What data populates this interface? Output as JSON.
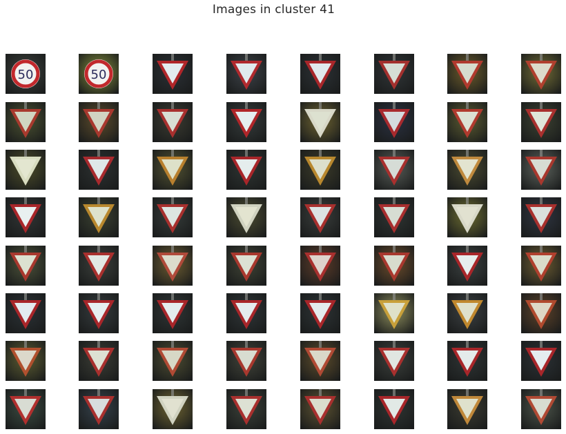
{
  "figure": {
    "title": "Images in cluster 41"
  },
  "grid": {
    "rows": 8,
    "cols": 8,
    "tiles": [
      {
        "sign": "speed-limit-50",
        "bg": "#3a3f3a",
        "accent": "#ffffff",
        "tint": "#e8ecec"
      },
      {
        "sign": "speed-limit-50",
        "bg": "#7f8a3a",
        "accent": "#cc2a2a",
        "tint": "#d9d3c0"
      },
      {
        "sign": "yield",
        "bg": "#2a2f34",
        "accent": "#b0262a",
        "tint": "#dfe9ee"
      },
      {
        "sign": "yield",
        "bg": "#3b4046",
        "accent": "#b02a2e",
        "tint": "#dbe8ec"
      },
      {
        "sign": "yield",
        "bg": "#2b3034",
        "accent": "#a8262a",
        "tint": "#dbe6ea"
      },
      {
        "sign": "yield",
        "bg": "#2f3436",
        "accent": "#a3302e",
        "tint": "#cfd9cf"
      },
      {
        "sign": "yield",
        "bg": "#6a5a2a",
        "accent": "#b03a2e",
        "tint": "#cfd6c6"
      },
      {
        "sign": "yield",
        "bg": "#6f6a34",
        "accent": "#b0402e",
        "tint": "#d6d6c2"
      },
      {
        "sign": "yield",
        "bg": "#4a5030",
        "accent": "#a83a2e",
        "tint": "#c8cfb8"
      },
      {
        "sign": "yield",
        "bg": "#5a4a2a",
        "accent": "#a8382e",
        "tint": "#c9cdb8"
      },
      {
        "sign": "yield",
        "bg": "#3a3a30",
        "accent": "#a8302e",
        "tint": "#d3d9cc"
      },
      {
        "sign": "yield",
        "bg": "#343a3a",
        "accent": "#b0262a",
        "tint": "#e1ebee"
      },
      {
        "sign": "yield",
        "bg": "#6a6030",
        "accent": "#d8d8c8",
        "tint": "#d8dcc8"
      },
      {
        "sign": "yield",
        "bg": "#2a3040",
        "accent": "#a82a2e",
        "tint": "#cdd5d8"
      },
      {
        "sign": "yield",
        "bg": "#5a5a30",
        "accent": "#b03a2e",
        "tint": "#d6dccc"
      },
      {
        "sign": "yield",
        "bg": "#3a4030",
        "accent": "#a8302e",
        "tint": "#dae2d4"
      },
      {
        "sign": "yield",
        "bg": "#4a4a28",
        "accent": "#d8dcc0",
        "tint": "#dfe2c8"
      },
      {
        "sign": "yield",
        "bg": "#2c3030",
        "accent": "#a82a2e",
        "tint": "#dae3e4"
      },
      {
        "sign": "yield",
        "bg": "#505030",
        "accent": "#b8802e",
        "tint": "#d8dcc0"
      },
      {
        "sign": "yield",
        "bg": "#2e3432",
        "accent": "#a8262a",
        "tint": "#e1eaea"
      },
      {
        "sign": "yield",
        "bg": "#3a3a28",
        "accent": "#b8882e",
        "tint": "#d6dac4"
      },
      {
        "sign": "yield",
        "bg": "#555a55",
        "accent": "#a8302e",
        "tint": "#cfd6cf"
      },
      {
        "sign": "yield",
        "bg": "#4a4a30",
        "accent": "#c08a3e",
        "tint": "#dfe0c8"
      },
      {
        "sign": "yield",
        "bg": "#5a605a",
        "accent": "#a8382e",
        "tint": "#d0d6cc"
      },
      {
        "sign": "yield",
        "bg": "#303434",
        "accent": "#a8262a",
        "tint": "#e6eeee"
      },
      {
        "sign": "yield",
        "bg": "#3a4030",
        "accent": "#b8882e",
        "tint": "#d8ddc4"
      },
      {
        "sign": "yield",
        "bg": "#343a38",
        "accent": "#a8302e",
        "tint": "#d8e1dc"
      },
      {
        "sign": "yield",
        "bg": "#4a4a30",
        "accent": "#d0d2c0",
        "tint": "#dee0c8"
      },
      {
        "sign": "yield",
        "bg": "#383c3a",
        "accent": "#a8302e",
        "tint": "#d6dede"
      },
      {
        "sign": "yield",
        "bg": "#2e3432",
        "accent": "#a82e2e",
        "tint": "#d0d8cc"
      },
      {
        "sign": "yield",
        "bg": "#6a6a30",
        "accent": "#d8d8c8",
        "tint": "#dcdcc8"
      },
      {
        "sign": "yield",
        "bg": "#2e3440",
        "accent": "#a8302e",
        "tint": "#d4dad8"
      },
      {
        "sign": "yield",
        "bg": "#4a5038",
        "accent": "#a8382e",
        "tint": "#d6dcc8"
      },
      {
        "sign": "yield",
        "bg": "#3a3e3a",
        "accent": "#a8302e",
        "tint": "#dde4e0"
      },
      {
        "sign": "yield",
        "bg": "#6a5a30",
        "accent": "#b04a3a",
        "tint": "#d6d6c4"
      },
      {
        "sign": "yield",
        "bg": "#3e4234",
        "accent": "#a8382e",
        "tint": "#d6dccc"
      },
      {
        "sign": "yield",
        "bg": "#5a3a28",
        "accent": "#a8302e",
        "tint": "#d8ccc4"
      },
      {
        "sign": "yield",
        "bg": "#6a4a2a",
        "accent": "#a8382e",
        "tint": "#d2d6c6"
      },
      {
        "sign": "yield",
        "bg": "#3a4040",
        "accent": "#a8262a",
        "tint": "#e2eaea"
      },
      {
        "sign": "yield",
        "bg": "#6a5a30",
        "accent": "#b0402e",
        "tint": "#d4d6c2"
      },
      {
        "sign": "yield",
        "bg": "#2a3034",
        "accent": "#a8262a",
        "tint": "#dfe9ee"
      },
      {
        "sign": "yield",
        "bg": "#343a3c",
        "accent": "#a8262a",
        "tint": "#e2ecee"
      },
      {
        "sign": "yield",
        "bg": "#2e3434",
        "accent": "#a8262a",
        "tint": "#e0eaec"
      },
      {
        "sign": "yield",
        "bg": "#2e3436",
        "accent": "#a8262a",
        "tint": "#e0e9ec"
      },
      {
        "sign": "yield",
        "bg": "#2c3234",
        "accent": "#a8262a",
        "tint": "#dfe8ea"
      },
      {
        "sign": "yield",
        "bg": "#8a8a5a",
        "accent": "#c8a03a",
        "tint": "#dadcc0"
      },
      {
        "sign": "yield",
        "bg": "#3a3e40",
        "accent": "#c0882e",
        "tint": "#dadcc4"
      },
      {
        "sign": "yield",
        "bg": "#5a4028",
        "accent": "#b04a2e",
        "tint": "#d8d2bc"
      },
      {
        "sign": "yield",
        "bg": "#5a5a30",
        "accent": "#b0502e",
        "tint": "#d6d2c2"
      },
      {
        "sign": "yield",
        "bg": "#3a3c34",
        "accent": "#a8302e",
        "tint": "#d8dccc"
      },
      {
        "sign": "yield",
        "bg": "#4a4a30",
        "accent": "#b04a34",
        "tint": "#d0d2bc"
      },
      {
        "sign": "yield",
        "bg": "#404238",
        "accent": "#a8382e",
        "tint": "#d2d6c8"
      },
      {
        "sign": "yield",
        "bg": "#5a4a2a",
        "accent": "#b04a34",
        "tint": "#d4d2c0"
      },
      {
        "sign": "yield",
        "bg": "#3a3e3a",
        "accent": "#a8302e",
        "tint": "#dce2dc"
      },
      {
        "sign": "yield",
        "bg": "#2e3434",
        "accent": "#a8262a",
        "tint": "#e0e8e8"
      },
      {
        "sign": "yield",
        "bg": "#2a3034",
        "accent": "#a8262a",
        "tint": "#e1eaee"
      },
      {
        "sign": "yield",
        "bg": "#3a4a40",
        "accent": "#b0302e",
        "tint": "#d2d6cc"
      },
      {
        "sign": "yield",
        "bg": "#34404a",
        "accent": "#a8302e",
        "tint": "#d2d8d8"
      },
      {
        "sign": "yield",
        "bg": "#6a6030",
        "accent": "#d0d2c0",
        "tint": "#dcdcc8"
      },
      {
        "sign": "yield",
        "bg": "#3a4038",
        "accent": "#a8302e",
        "tint": "#d8dccc"
      },
      {
        "sign": "yield",
        "bg": "#5a5030",
        "accent": "#a8302e",
        "tint": "#d4d6c4"
      },
      {
        "sign": "yield",
        "bg": "#2e3432",
        "accent": "#a8262a",
        "tint": "#dde6e2"
      },
      {
        "sign": "yield",
        "bg": "#3a3a30",
        "accent": "#c0883a",
        "tint": "#dadcc4"
      },
      {
        "sign": "yield",
        "bg": "#4a5248",
        "accent": "#b04a34",
        "tint": "#d2d6c8"
      }
    ]
  }
}
